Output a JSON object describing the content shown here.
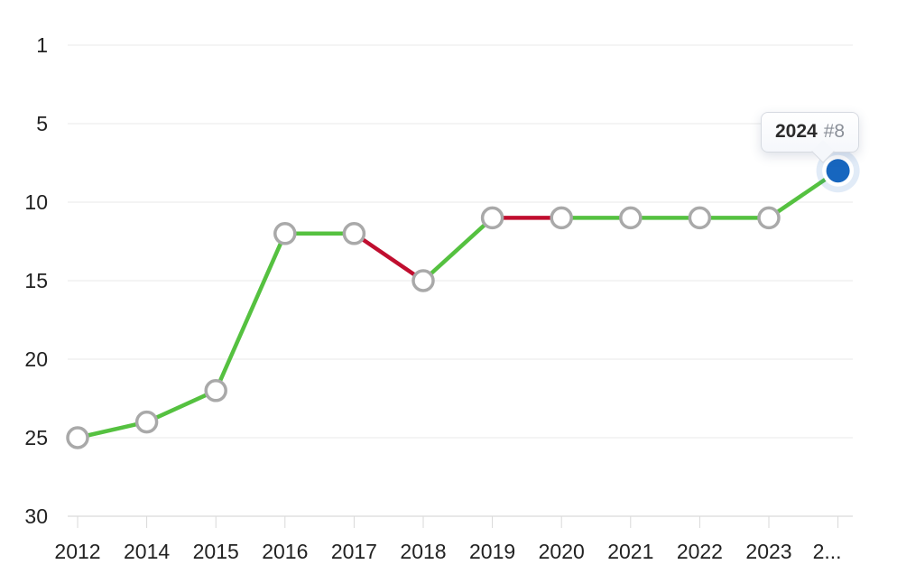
{
  "chart_data": {
    "type": "line",
    "y_axis": {
      "ticks": [
        1,
        5,
        10,
        15,
        20,
        25,
        30
      ],
      "inverted": true,
      "range": [
        1,
        30
      ]
    },
    "x_axis": {
      "tick_labels": [
        "2012",
        "2014",
        "2015",
        "2016",
        "2017",
        "2018",
        "2019",
        "2020",
        "2021",
        "2022",
        "2023",
        "2..."
      ]
    },
    "points": [
      {
        "year": "2012",
        "rank": 25,
        "highlighted": false
      },
      {
        "year": "2014",
        "rank": 24,
        "highlighted": false
      },
      {
        "year": "2015",
        "rank": 22,
        "highlighted": false
      },
      {
        "year": "2016",
        "rank": 12,
        "highlighted": false
      },
      {
        "year": "2017",
        "rank": 12,
        "highlighted": false
      },
      {
        "year": "2018",
        "rank": 15,
        "highlighted": false
      },
      {
        "year": "2019",
        "rank": 11,
        "highlighted": false
      },
      {
        "year": "2020",
        "rank": 11,
        "highlighted": false
      },
      {
        "year": "2021",
        "rank": 11,
        "highlighted": false
      },
      {
        "year": "2022",
        "rank": 11,
        "highlighted": false
      },
      {
        "year": "2023",
        "rank": 11,
        "highlighted": false
      },
      {
        "year": "2024",
        "rank": 8,
        "highlighted": true
      }
    ],
    "segments": [
      "improve",
      "improve",
      "improve",
      "improve",
      "decline",
      "improve",
      "decline",
      "improve",
      "improve",
      "improve",
      "improve"
    ],
    "legend": "none",
    "grid": "horizontal",
    "colors": {
      "improve": "#55c140",
      "decline": "#c00e2f",
      "highlight": "#1766bf",
      "highlight_glow": "rgba(23,102,191,0.13)",
      "marker_fill": "#ffffff",
      "marker_stroke": "#a9a9a9",
      "grid_line": "#e9e9e9",
      "axis_line": "#d2d2d2",
      "tick_mark": "#d9d9d9",
      "label": "#222222"
    },
    "tooltip": {
      "title": "2024",
      "value": "#8"
    }
  }
}
